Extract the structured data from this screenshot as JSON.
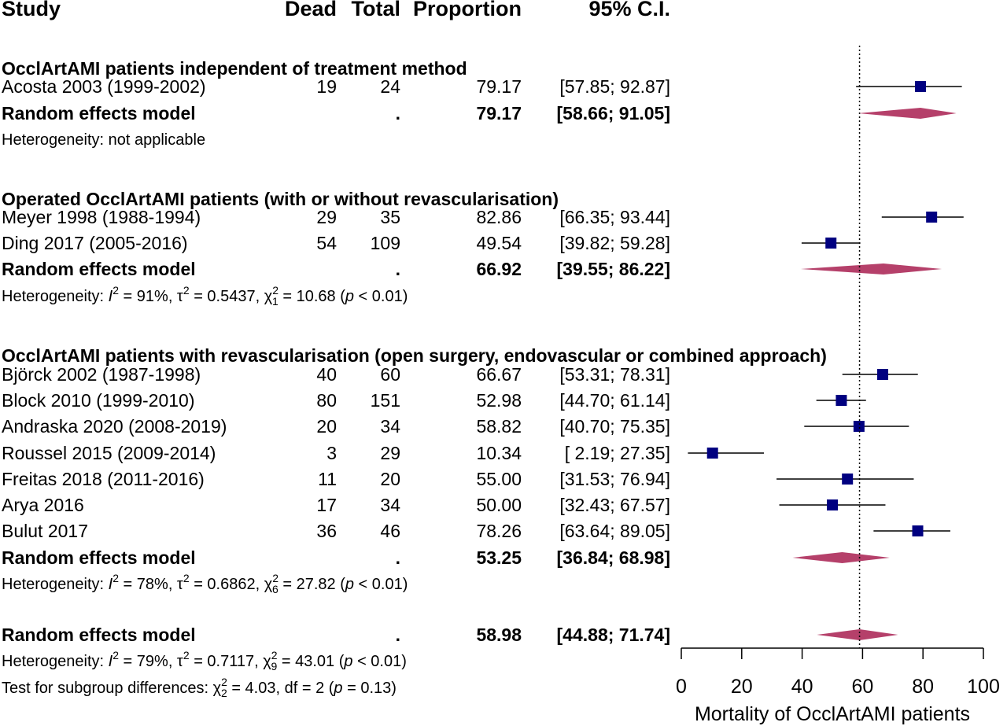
{
  "chart_data": {
    "type": "forest",
    "columns": [
      "Study",
      "Dead",
      "Total",
      "Proportion",
      "95% C.I."
    ],
    "xlabel": "Mortality of OcclArtAMI patients",
    "xlim": [
      0,
      100
    ],
    "xticks": [
      0,
      20,
      40,
      60,
      80,
      100
    ],
    "reference_line": 59,
    "colors": {
      "square": "#000080",
      "diamond": "#B5406A",
      "line": "#000000"
    },
    "groups": [
      {
        "title": "OcclArtAMI patients independent of treatment method",
        "studies": [
          {
            "label": "Acosta 2003 (1999-2002)",
            "dead": "19",
            "total": "24",
            "prop": "79.17",
            "ci": "[57.85; 92.87]",
            "est": 79.17,
            "lo": 57.85,
            "hi": 92.87
          }
        ],
        "pooled": {
          "label": "Random effects model",
          "dead": "",
          "total": ".",
          "prop": "79.17",
          "ci": "[58.66; 91.05]",
          "est": 79.17,
          "lo": 58.66,
          "hi": 91.05
        },
        "het": [
          {
            "text": "Heterogeneity: not applicable"
          }
        ]
      },
      {
        "title": "Operated OcclArtAMI patients (with or without revascularisation)",
        "studies": [
          {
            "label": "Meyer 1998 (1988-1994)",
            "dead": "29",
            "total": "35",
            "prop": "82.86",
            "ci": "[66.35; 93.44]",
            "est": 82.86,
            "lo": 66.35,
            "hi": 93.44
          },
          {
            "label": "Ding 2017 (2005-2016)",
            "dead": "54",
            "total": "109",
            "prop": "49.54",
            "ci": "[39.82; 59.28]",
            "est": 49.54,
            "lo": 39.82,
            "hi": 59.28
          }
        ],
        "pooled": {
          "label": "Random effects model",
          "dead": "",
          "total": ".",
          "prop": "66.92",
          "ci": "[39.55; 86.22]",
          "est": 66.92,
          "lo": 39.55,
          "hi": 86.22
        },
        "het": [
          {
            "text": "Heterogeneity: "
          },
          {
            "text": "I",
            "it": true
          },
          {
            "text": "2",
            "sup": true
          },
          {
            "text": " = 91%, τ"
          },
          {
            "text": "2",
            "sup": true
          },
          {
            "text": " = 0.5437, χ"
          },
          {
            "text": "2",
            "sup": true
          },
          {
            "text": "1",
            "sub": true
          },
          {
            "text": " = 10.68 ("
          },
          {
            "text": "p",
            "it": true
          },
          {
            "text": " < 0.01)"
          }
        ]
      },
      {
        "title": "OcclArtAMI patients with revascularisation (open surgery, endovascular or combined approach)",
        "studies": [
          {
            "label": "Björck 2002 (1987-1998)",
            "dead": "40",
            "total": "60",
            "prop": "66.67",
            "ci": "[53.31; 78.31]",
            "est": 66.67,
            "lo": 53.31,
            "hi": 78.31
          },
          {
            "label": "Block 2010 (1999-2010)",
            "dead": "80",
            "total": "151",
            "prop": "52.98",
            "ci": "[44.70; 61.14]",
            "est": 52.98,
            "lo": 44.7,
            "hi": 61.14
          },
          {
            "label": "Andraska 2020 (2008-2019)",
            "dead": "20",
            "total": "34",
            "prop": "58.82",
            "ci": "[40.70; 75.35]",
            "est": 58.82,
            "lo": 40.7,
            "hi": 75.35
          },
          {
            "label": "Roussel 2015 (2009-2014)",
            "dead": "3",
            "total": "29",
            "prop": "10.34",
            "ci": "[ 2.19; 27.35]",
            "est": 10.34,
            "lo": 2.19,
            "hi": 27.35
          },
          {
            "label": "Freitas 2018 (2011-2016)",
            "dead": "11",
            "total": "20",
            "prop": "55.00",
            "ci": "[31.53; 76.94]",
            "est": 55.0,
            "lo": 31.53,
            "hi": 76.94
          },
          {
            "label": "Arya 2016",
            "dead": "17",
            "total": "34",
            "prop": "50.00",
            "ci": "[32.43; 67.57]",
            "est": 50.0,
            "lo": 32.43,
            "hi": 67.57
          },
          {
            "label": "Bulut 2017",
            "dead": "36",
            "total": "46",
            "prop": "78.26",
            "ci": "[63.64; 89.05]",
            "est": 78.26,
            "lo": 63.64,
            "hi": 89.05
          }
        ],
        "pooled": {
          "label": "Random effects model",
          "dead": "",
          "total": ".",
          "prop": "53.25",
          "ci": "[36.84; 68.98]",
          "est": 53.25,
          "lo": 36.84,
          "hi": 68.98
        },
        "het": [
          {
            "text": "Heterogeneity: "
          },
          {
            "text": "I",
            "it": true
          },
          {
            "text": "2",
            "sup": true
          },
          {
            "text": " = 78%, τ"
          },
          {
            "text": "2",
            "sup": true
          },
          {
            "text": " = 0.6862, χ"
          },
          {
            "text": "2",
            "sup": true
          },
          {
            "text": "6",
            "sub": true
          },
          {
            "text": " = 27.82 ("
          },
          {
            "text": "p",
            "it": true
          },
          {
            "text": " < 0.01)"
          }
        ]
      }
    ],
    "overall": {
      "pooled": {
        "label": "Random effects model",
        "dead": "",
        "total": ".",
        "prop": "58.98",
        "ci": "[44.88; 71.74]",
        "est": 58.98,
        "lo": 44.88,
        "hi": 71.74
      },
      "het": [
        {
          "text": "Heterogeneity: "
        },
        {
          "text": "I",
          "it": true
        },
        {
          "text": "2",
          "sup": true
        },
        {
          "text": " = 79%, τ"
        },
        {
          "text": "2",
          "sup": true
        },
        {
          "text": " = 0.7117, χ"
        },
        {
          "text": "2",
          "sup": true
        },
        {
          "text": "9",
          "sub": true
        },
        {
          "text": " = 43.01 ("
        },
        {
          "text": "p",
          "it": true
        },
        {
          "text": " < 0.01)"
        }
      ],
      "subgroup_test": [
        {
          "text": "Test for subgroup differences: χ"
        },
        {
          "text": "2",
          "sup": true
        },
        {
          "text": "2",
          "sub": true
        },
        {
          "text": " = 4.03, df = 2 ("
        },
        {
          "text": "p",
          "it": true
        },
        {
          "text": " = 0.13)"
        }
      ]
    }
  }
}
